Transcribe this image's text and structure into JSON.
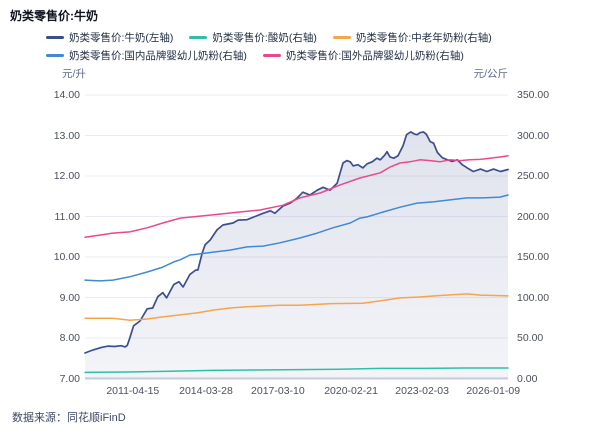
{
  "header": {
    "title": "奶类零售价:牛奶"
  },
  "source": {
    "label": "数据来源：同花顺iFinD"
  },
  "legend": {
    "rows": [
      [
        0,
        1,
        2
      ],
      [
        3,
        4
      ]
    ]
  },
  "chart_data": {
    "type": "line",
    "title": "奶类零售价:牛奶",
    "grid": true,
    "legend_position": "top",
    "colors": {
      "grid": "#eaecf5",
      "axis_line": "#c9cfdc",
      "background": "#ffffff"
    },
    "left_axis": {
      "unit": "元/升",
      "min": 7,
      "max": 14,
      "ticks": [
        "14.00",
        "13.00",
        "12.00",
        "11.00",
        "10.00",
        "9.00",
        "8.00",
        "7.00"
      ]
    },
    "right_axis": {
      "unit": "元/公斤",
      "min": 0,
      "max": 350,
      "ticks": [
        "350.00",
        "300.00",
        "250.00",
        "200.00",
        "150.00",
        "100.00",
        "50.00",
        "0.00"
      ]
    },
    "x_ticks": [
      {
        "label": "2011-04-15",
        "t": 0.113
      },
      {
        "label": "2014-03-28",
        "t": 0.286
      },
      {
        "label": "2017-03-10",
        "t": 0.456
      },
      {
        "label": "2020-02-21",
        "t": 0.629
      },
      {
        "label": "2023-02-03",
        "t": 0.797
      },
      {
        "label": "2026-01-09",
        "t": 0.965
      }
    ],
    "series": [
      {
        "name": "奶类零售价:牛奶(左轴)",
        "axis": "left",
        "color": "#3d4e8f",
        "fill": true,
        "points": [
          [
            0,
            7.63
          ],
          [
            0.012,
            7.68
          ],
          [
            0.024,
            7.72
          ],
          [
            0.04,
            7.77
          ],
          [
            0.055,
            7.8
          ],
          [
            0.07,
            7.79
          ],
          [
            0.085,
            7.81
          ],
          [
            0.095,
            7.78
          ],
          [
            0.1,
            7.82
          ],
          [
            0.106,
            8.0
          ],
          [
            0.115,
            8.3
          ],
          [
            0.13,
            8.42
          ],
          [
            0.147,
            8.72
          ],
          [
            0.16,
            8.74
          ],
          [
            0.172,
            9.02
          ],
          [
            0.184,
            9.12
          ],
          [
            0.193,
            8.99
          ],
          [
            0.21,
            9.32
          ],
          [
            0.222,
            9.39
          ],
          [
            0.232,
            9.26
          ],
          [
            0.248,
            9.57
          ],
          [
            0.262,
            9.68
          ],
          [
            0.267,
            9.68
          ],
          [
            0.277,
            10.1
          ],
          [
            0.284,
            10.3
          ],
          [
            0.296,
            10.42
          ],
          [
            0.312,
            10.67
          ],
          [
            0.326,
            10.79
          ],
          [
            0.35,
            10.84
          ],
          [
            0.362,
            10.91
          ],
          [
            0.383,
            10.92
          ],
          [
            0.402,
            11.0
          ],
          [
            0.421,
            11.08
          ],
          [
            0.438,
            11.14
          ],
          [
            0.449,
            11.08
          ],
          [
            0.468,
            11.26
          ],
          [
            0.485,
            11.33
          ],
          [
            0.501,
            11.45
          ],
          [
            0.515,
            11.6
          ],
          [
            0.532,
            11.53
          ],
          [
            0.549,
            11.65
          ],
          [
            0.563,
            11.72
          ],
          [
            0.579,
            11.65
          ],
          [
            0.596,
            11.82
          ],
          [
            0.61,
            12.32
          ],
          [
            0.619,
            12.38
          ],
          [
            0.627,
            12.35
          ],
          [
            0.634,
            12.25
          ],
          [
            0.645,
            12.28
          ],
          [
            0.657,
            12.2
          ],
          [
            0.667,
            12.3
          ],
          [
            0.679,
            12.35
          ],
          [
            0.69,
            12.44
          ],
          [
            0.698,
            12.4
          ],
          [
            0.709,
            12.52
          ],
          [
            0.714,
            12.6
          ],
          [
            0.721,
            12.47
          ],
          [
            0.73,
            12.44
          ],
          [
            0.74,
            12.5
          ],
          [
            0.752,
            12.75
          ],
          [
            0.76,
            13.02
          ],
          [
            0.77,
            13.09
          ],
          [
            0.778,
            13.04
          ],
          [
            0.785,
            13.02
          ],
          [
            0.792,
            13.07
          ],
          [
            0.8,
            13.09
          ],
          [
            0.807,
            13.03
          ],
          [
            0.816,
            12.85
          ],
          [
            0.824,
            12.81
          ],
          [
            0.833,
            12.58
          ],
          [
            0.845,
            12.45
          ],
          [
            0.857,
            12.4
          ],
          [
            0.868,
            12.36
          ],
          [
            0.88,
            12.4
          ],
          [
            0.892,
            12.28
          ],
          [
            0.905,
            12.19
          ],
          [
            0.918,
            12.11
          ],
          [
            0.935,
            12.17
          ],
          [
            0.95,
            12.11
          ],
          [
            0.966,
            12.17
          ],
          [
            0.982,
            12.11
          ],
          [
            1,
            12.16
          ]
        ]
      },
      {
        "name": "奶类零售价:酸奶(右轴)",
        "axis": "right",
        "color": "#2fbfa9",
        "fill": false,
        "points": [
          [
            0,
            7.5
          ],
          [
            0.1,
            8
          ],
          [
            0.2,
            9
          ],
          [
            0.3,
            10
          ],
          [
            0.4,
            10.5
          ],
          [
            0.5,
            11
          ],
          [
            0.6,
            11.5
          ],
          [
            0.7,
            12.5
          ],
          [
            0.8,
            12.5
          ],
          [
            0.9,
            13
          ],
          [
            1,
            13
          ]
        ]
      },
      {
        "name": "奶类零售价:中老年奶粉(右轴)",
        "axis": "right",
        "color": "#f5a54a",
        "fill": false,
        "points": [
          [
            0,
            74.5
          ],
          [
            0.066,
            74.5
          ],
          [
            0.106,
            72
          ],
          [
            0.147,
            73.5
          ],
          [
            0.184,
            76
          ],
          [
            0.225,
            78.5
          ],
          [
            0.265,
            81
          ],
          [
            0.303,
            84.5
          ],
          [
            0.343,
            87
          ],
          [
            0.383,
            88.5
          ],
          [
            0.421,
            89.5
          ],
          [
            0.461,
            90.5
          ],
          [
            0.508,
            90.5
          ],
          [
            0.582,
            92.5
          ],
          [
            0.657,
            93
          ],
          [
            0.7,
            96
          ],
          [
            0.745,
            99.5
          ],
          [
            0.786,
            100.5
          ],
          [
            0.84,
            102.5
          ],
          [
            0.903,
            104.5
          ],
          [
            0.934,
            103
          ],
          [
            1,
            102
          ]
        ]
      },
      {
        "name": "奶类零售价:国内品牌婴幼儿奶粉(右轴)",
        "axis": "right",
        "color": "#4189d4",
        "fill": false,
        "points": [
          [
            0,
            121.5
          ],
          [
            0.035,
            120.5
          ],
          [
            0.066,
            121.5
          ],
          [
            0.106,
            125.5
          ],
          [
            0.147,
            131.5
          ],
          [
            0.184,
            137.5
          ],
          [
            0.21,
            144
          ],
          [
            0.225,
            146.5
          ],
          [
            0.248,
            152.5
          ],
          [
            0.265,
            153.5
          ],
          [
            0.303,
            156
          ],
          [
            0.343,
            158.5
          ],
          [
            0.383,
            162.5
          ],
          [
            0.421,
            163.5
          ],
          [
            0.461,
            167.5
          ],
          [
            0.508,
            173.5
          ],
          [
            0.549,
            179.5
          ],
          [
            0.586,
            186
          ],
          [
            0.627,
            192
          ],
          [
            0.65,
            198
          ],
          [
            0.667,
            199.5
          ],
          [
            0.705,
            205.5
          ],
          [
            0.745,
            211.5
          ],
          [
            0.785,
            216.5
          ],
          [
            0.823,
            218
          ],
          [
            0.863,
            220.5
          ],
          [
            0.903,
            223
          ],
          [
            0.941,
            223
          ],
          [
            0.981,
            224
          ],
          [
            1,
            226.5
          ]
        ]
      },
      {
        "name": "奶类零售价:国外品牌婴幼儿奶粉(右轴)",
        "axis": "right",
        "color": "#e8498f",
        "fill": false,
        "points": [
          [
            0,
            174.5
          ],
          [
            0.035,
            177
          ],
          [
            0.066,
            179.5
          ],
          [
            0.106,
            181
          ],
          [
            0.147,
            186
          ],
          [
            0.184,
            192
          ],
          [
            0.225,
            198
          ],
          [
            0.272,
            200.5
          ],
          [
            0.319,
            203
          ],
          [
            0.366,
            205.5
          ],
          [
            0.414,
            208
          ],
          [
            0.468,
            214
          ],
          [
            0.508,
            223
          ],
          [
            0.556,
            229
          ],
          [
            0.603,
            239
          ],
          [
            0.65,
            247.5
          ],
          [
            0.698,
            254
          ],
          [
            0.721,
            261
          ],
          [
            0.745,
            266
          ],
          [
            0.768,
            267.5
          ],
          [
            0.792,
            270
          ],
          [
            0.816,
            269
          ],
          [
            0.839,
            267.5
          ],
          [
            0.863,
            270
          ],
          [
            0.887,
            269
          ],
          [
            0.91,
            270
          ],
          [
            0.934,
            270.5
          ],
          [
            0.957,
            272
          ],
          [
            0.981,
            273.5
          ],
          [
            1,
            275
          ]
        ]
      }
    ]
  }
}
